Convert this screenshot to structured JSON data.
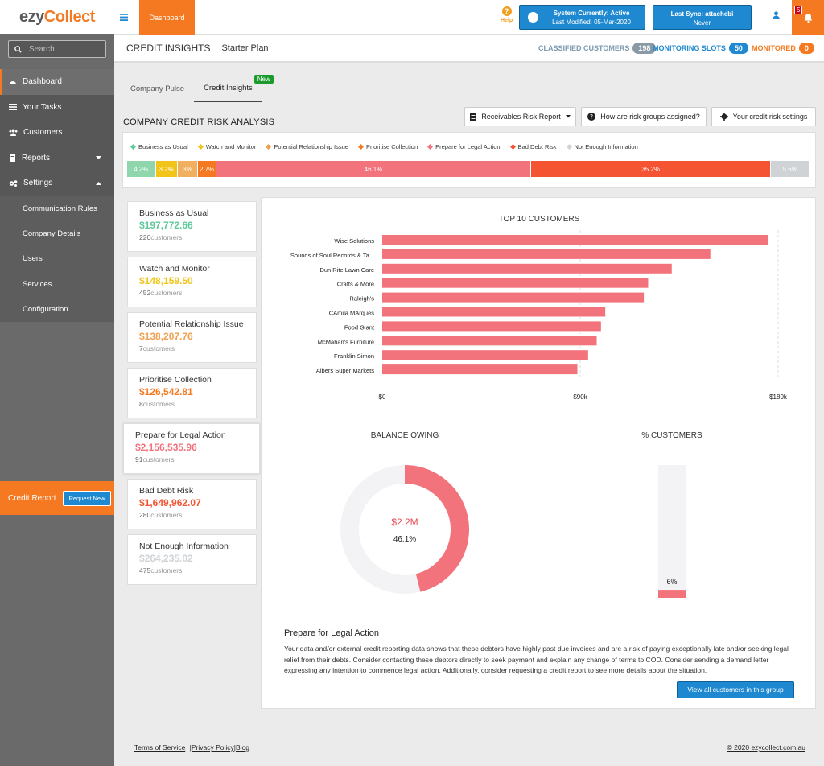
{
  "app": {
    "logo_a": "ezy",
    "logo_b": "Collect"
  },
  "sidebar": {
    "search_placeholder": "Search",
    "nav": [
      {
        "label": "Dashboard",
        "icon": "dashboard-icon"
      },
      {
        "label": "Your Tasks",
        "icon": "tasks-icon"
      },
      {
        "label": "Customers",
        "icon": "customers-icon"
      },
      {
        "label": "Reports",
        "icon": "reports-icon"
      },
      {
        "label": "Settings",
        "icon": "settings-icon"
      }
    ],
    "settings_sub": [
      "Communication Rules",
      "Company Details",
      "Users",
      "Services",
      "Configuration"
    ],
    "credit_report_label": "Credit Report",
    "request_new_label": "Request New"
  },
  "topbar": {
    "dashboard_label": "Dashboard",
    "help_label": "Help",
    "system_status": "System Currently: Active",
    "last_modified": "Last Modified: 05-Mar-2020",
    "last_sync": "Last Sync: attachebi",
    "last_sync_value": "Never",
    "notification_count": "5"
  },
  "subheader": {
    "title": "CREDIT INSIGHTS",
    "plan": "Starter Plan",
    "classified_label": "CLASSIFIED CUSTOMERS",
    "classified_count": "198",
    "slots_label": "MONITORING SLOTS",
    "slots_count": "50",
    "monitored_label": "MONITORED",
    "monitored_count": "0"
  },
  "tabs": {
    "pulse": "Company Pulse",
    "insights": "Credit Insights",
    "new_tag": "New"
  },
  "risk": {
    "title": "COMPANY CREDIT RISK ANALYSIS",
    "receivables_btn": "Receivables Risk Report",
    "how_btn": "How are risk groups assigned?",
    "settings_btn": "Your credit risk settings",
    "legend": [
      {
        "label": "Business as Usual",
        "color": "#5fc99a"
      },
      {
        "label": "Watch and Monitor",
        "color": "#f0c419"
      },
      {
        "label": "Potential Relationship Issue",
        "color": "#f0a050"
      },
      {
        "label": "Prioritise Collection",
        "color": "#f47920"
      },
      {
        "label": "Prepare for Legal Action",
        "color": "#f2737c"
      },
      {
        "label": "Bad Debt Risk",
        "color": "#f45431"
      },
      {
        "label": "Not Enough Information",
        "color": "#cfd3d6"
      }
    ],
    "segments": [
      {
        "label": "4.2%",
        "value": 4.2,
        "color": "#8fd6ad"
      },
      {
        "label": "3.2%",
        "value": 3.2,
        "color": "#f0c419"
      },
      {
        "label": "3%",
        "value": 3.0,
        "color": "#f0b060"
      },
      {
        "label": "2.7%",
        "value": 2.7,
        "color": "#f47920"
      },
      {
        "label": "46.1%",
        "value": 46.1,
        "color": "#f2737c"
      },
      {
        "label": "35.2%",
        "value": 35.2,
        "color": "#f45431"
      },
      {
        "label": "5.6%",
        "value": 5.6,
        "color": "#cfd3d6"
      }
    ]
  },
  "groups": [
    {
      "title": "Business as Usual",
      "amount": "$197,772.66",
      "count": "220",
      "color": "#5fc99a"
    },
    {
      "title": "Watch and Monitor",
      "amount": "$148,159.50",
      "count": "452",
      "color": "#f0c419"
    },
    {
      "title": "Potential Relationship Issue",
      "amount": "$138,207.76",
      "count": "7",
      "color": "#f0a050"
    },
    {
      "title": "Prioritise Collection",
      "amount": "$126,542.81",
      "count": "8",
      "color": "#f47920"
    },
    {
      "title": "Prepare for Legal Action",
      "amount": "$2,156,535.96",
      "count": "91",
      "color": "#f2737c"
    },
    {
      "title": "Bad Debt Risk",
      "amount": "$1,649,962.07",
      "count": "280",
      "color": "#f45431"
    },
    {
      "title": "Not Enough Information",
      "amount": "$264,235.02",
      "count": "475",
      "color": "#cfd3d6"
    }
  ],
  "customers_suffix": "customers",
  "chart_data": [
    {
      "type": "bar",
      "orientation": "horizontal",
      "title": "TOP 10 CUSTOMERS",
      "categories": [
        "Wise Solutions",
        "Sounds of Soul Records & Ta...",
        "Dun Rite Lawn Care",
        "Crafts & More",
        "Raleigh's",
        "CAmila MArques",
        "Food Giant",
        "McMahan's Furniture",
        "Franklin Simon",
        "Albers Super Markets"
      ],
      "values": [
        180000,
        153000,
        135000,
        124000,
        122000,
        104000,
        102000,
        100000,
        96000,
        91000
      ],
      "xlim": [
        0,
        180000
      ],
      "xticks": [
        "$0",
        "$90k",
        "$180k"
      ],
      "color": "#f2737c"
    },
    {
      "type": "pie",
      "title": "BALANCE OWING",
      "center_value": "$2.2M",
      "center_percent": "46.1%",
      "value_percent": 46.1,
      "colors": [
        "#f2737c",
        "#f3f3f5"
      ]
    },
    {
      "type": "bar",
      "title": "% CUSTOMERS",
      "label": "6%",
      "value_percent": 6,
      "color": "#f2737c"
    }
  ],
  "description": {
    "title": "Prepare for Legal Action",
    "text": "Your data and/or external credit reporting data shows that these debtors have highly past due invoices and are a risk of paying exceptionally late and/or seeking legal relief from their debts. Consider contacting these debtors directly to seek payment and explain any change of terms to COD. Consider sending a demand letter expressing any intention to commence legal action. Additionally, consider requesting a credit report to see more details about the situation.",
    "button": "View all customers in this group"
  },
  "footer": {
    "terms": "Terms of Service",
    "privacy": "|Privacy Policy",
    "blog": "|Blog",
    "copyright": "© 2020 ezycollect.com.au"
  }
}
